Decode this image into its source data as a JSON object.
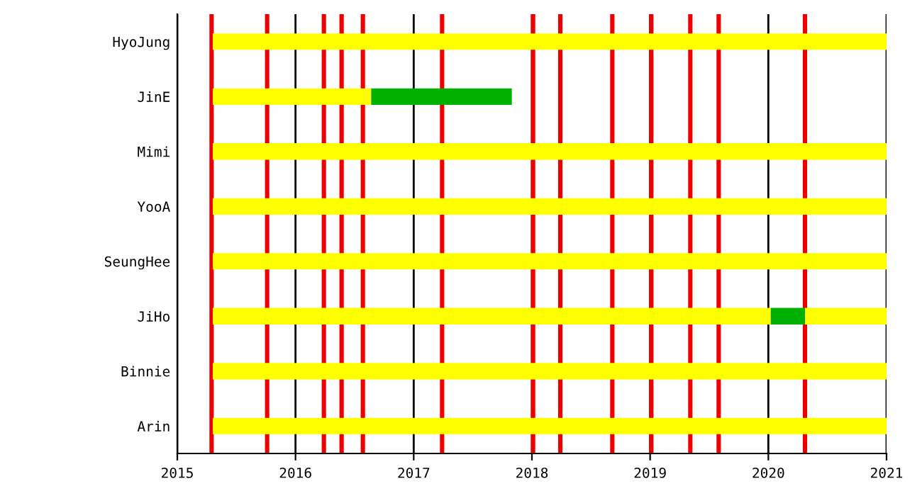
{
  "chart_data": {
    "type": "bar",
    "orientation": "horizontal",
    "categories": [
      "HyoJung",
      "JinE",
      "Mimi",
      "YooA",
      "SeungHee",
      "JiHo",
      "Binnie",
      "Arin"
    ],
    "series": [
      {
        "color": "#ffff00",
        "base": [
          2015.3,
          2015.3,
          2015.3,
          2015.3,
          2015.3,
          2015.3,
          2015.3,
          2015.3
        ],
        "values": [
          5.7,
          1.34,
          5.7,
          5.7,
          5.7,
          4.72,
          5.7,
          5.7
        ]
      },
      {
        "color": "#00b000",
        "base": [
          null,
          2016.64,
          null,
          null,
          null,
          2020.02,
          null,
          null
        ],
        "values": [
          null,
          1.19,
          null,
          null,
          null,
          0.29,
          null,
          null
        ]
      },
      {
        "color": "#ffff00",
        "base": [
          null,
          null,
          null,
          null,
          null,
          2020.31,
          null,
          null
        ],
        "values": [
          null,
          null,
          null,
          null,
          null,
          0.69,
          null,
          null
        ]
      }
    ],
    "xlim": [
      2015,
      2021
    ],
    "xticks": [
      2015,
      2016,
      2017,
      2018,
      2019,
      2020,
      2021
    ],
    "grid": "x",
    "ref_lines": [
      {
        "axis": "x",
        "value": 2015.29,
        "color": "#ee0000"
      },
      {
        "axis": "x",
        "value": 2015.76,
        "color": "#ee0000"
      },
      {
        "axis": "x",
        "value": 2016.24,
        "color": "#ee0000"
      },
      {
        "axis": "x",
        "value": 2016.39,
        "color": "#ee0000"
      },
      {
        "axis": "x",
        "value": 2016.57,
        "color": "#ee0000"
      },
      {
        "axis": "x",
        "value": 2017.24,
        "color": "#ee0000"
      },
      {
        "axis": "x",
        "value": 2018.01,
        "color": "#ee0000"
      },
      {
        "axis": "x",
        "value": 2018.24,
        "color": "#ee0000"
      },
      {
        "axis": "x",
        "value": 2018.68,
        "color": "#ee0000"
      },
      {
        "axis": "x",
        "value": 2019.01,
        "color": "#ee0000"
      },
      {
        "axis": "x",
        "value": 2019.34,
        "color": "#ee0000"
      },
      {
        "axis": "x",
        "value": 2019.58,
        "color": "#ee0000"
      },
      {
        "axis": "x",
        "value": 2020.31,
        "color": "#ee0000"
      }
    ]
  }
}
